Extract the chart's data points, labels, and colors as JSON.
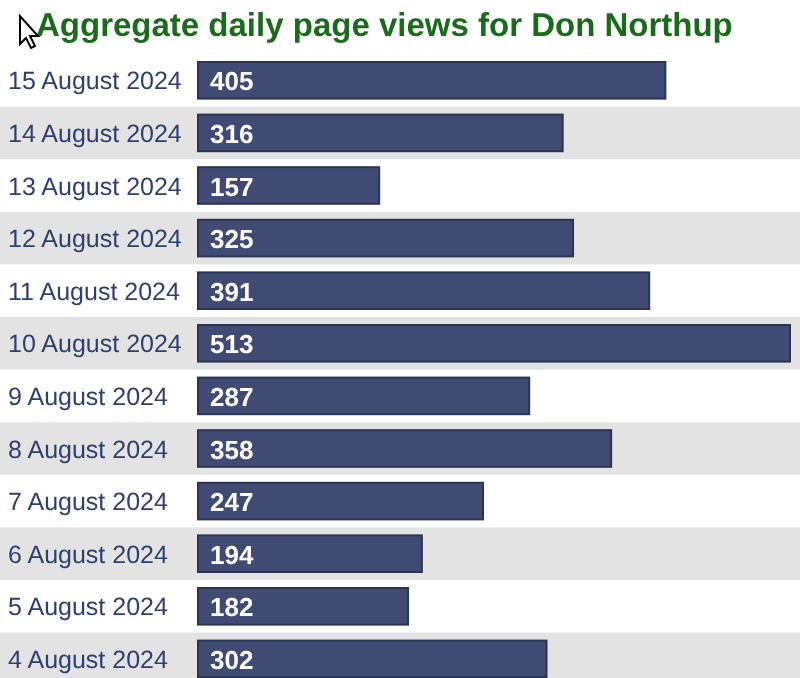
{
  "chart_data": {
    "type": "bar",
    "orientation": "horizontal",
    "title": "Aggregate daily page views for Don Northup",
    "categories": [
      "15 August 2024",
      "14 August 2024",
      "13 August 2024",
      "12 August 2024",
      "11 August 2024",
      "10 August 2024",
      "9 August 2024",
      "8 August 2024",
      "7 August 2024",
      "6 August 2024",
      "5 August 2024",
      "4 August 2024"
    ],
    "values": [
      405,
      316,
      157,
      325,
      391,
      513,
      287,
      358,
      247,
      194,
      182,
      302
    ],
    "color": "#3f4b72",
    "data_labels": true
  }
}
